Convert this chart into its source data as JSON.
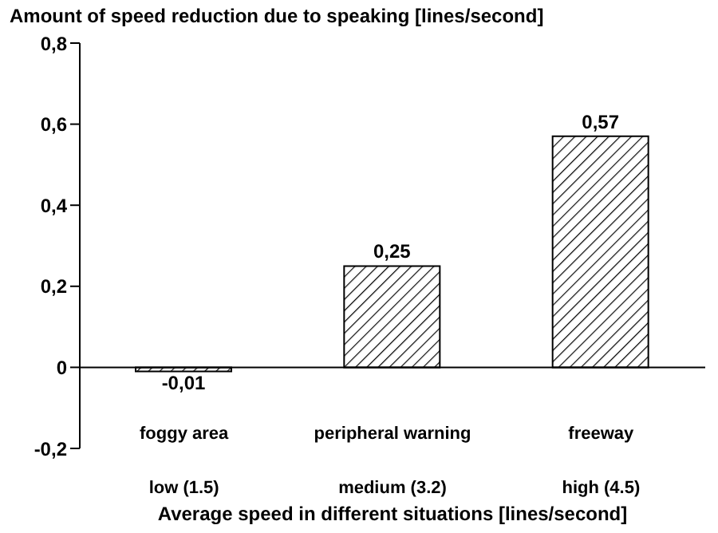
{
  "chart_data": {
    "type": "bar",
    "ylabel": "Amount of speed reduction due to speaking [lines/second]",
    "xlabel": "Average speed in different situations [lines/second]",
    "categories": [
      "foggy area\nlow (1.5)",
      "peripheral warning\nmedium (3.2)",
      "freeway\nhigh (4.5)"
    ],
    "values": [
      -0.01,
      0.25,
      0.57
    ],
    "value_labels": [
      "-0,01",
      "0,25",
      "0,57"
    ],
    "color": "#000000",
    "ylim": [
      -0.2,
      0.8
    ],
    "yticks": [
      {
        "value": -0.2,
        "label": "-0,2"
      },
      {
        "value": 0,
        "label": "0"
      },
      {
        "value": 0.2,
        "label": "0,2"
      },
      {
        "value": 0.4,
        "label": "0,4"
      },
      {
        "value": 0.6,
        "label": "0,6"
      },
      {
        "value": 0.8,
        "label": "0,8"
      }
    ],
    "ref_lines": [
      {
        "axis": "y",
        "value": 0
      }
    ],
    "grid": false,
    "legend": false
  }
}
